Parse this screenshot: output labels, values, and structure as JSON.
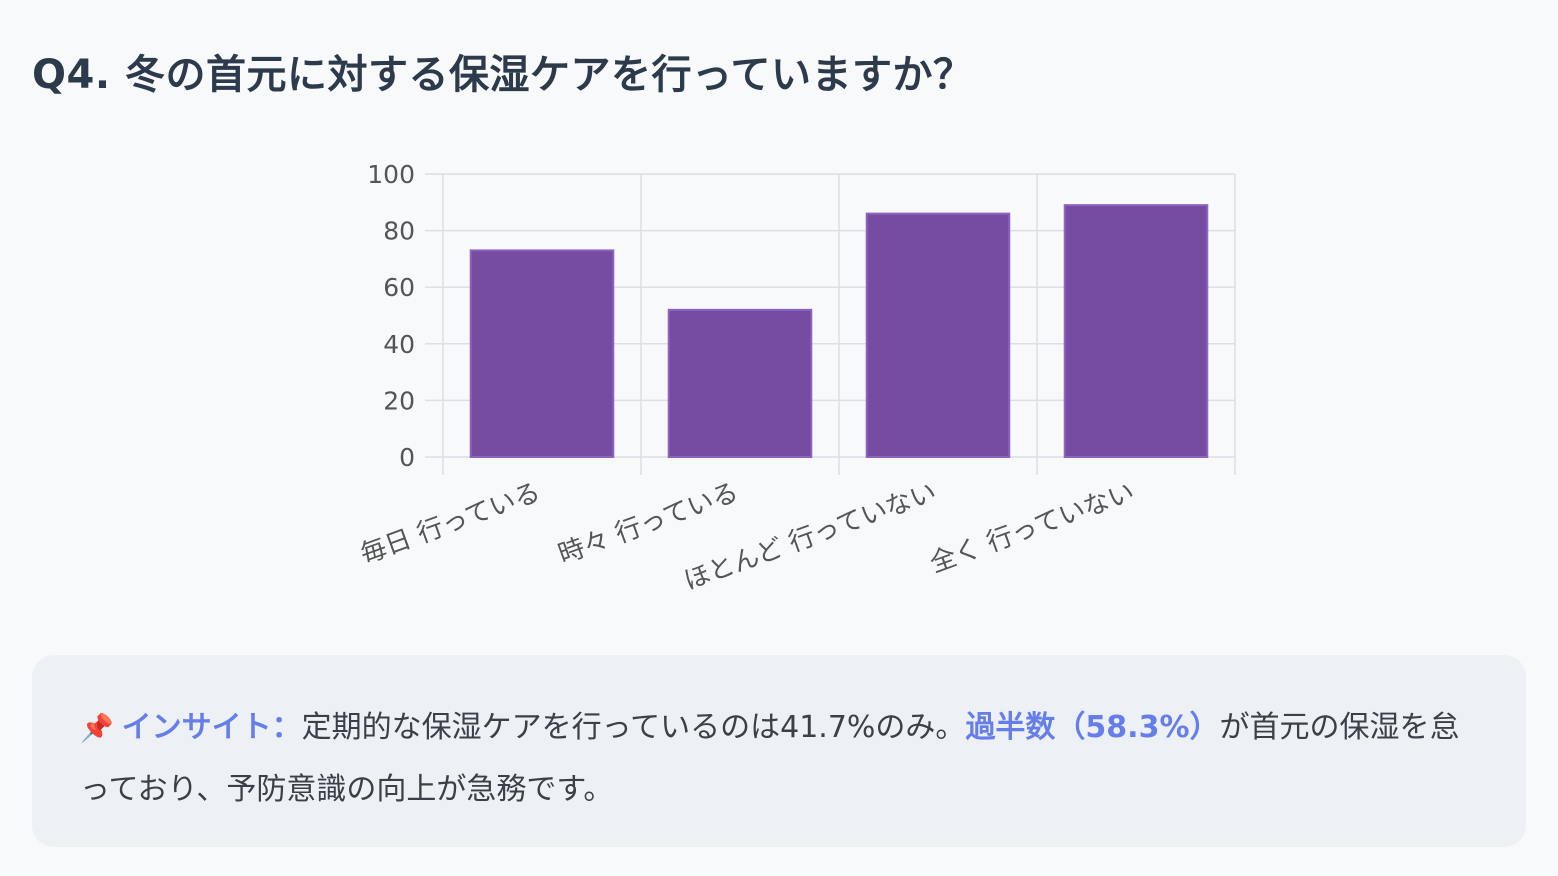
{
  "title": "Q4. 冬の首元に対する保湿ケアを行っていますか？",
  "colors": {
    "bar_fill": "#764ba2",
    "bar_border": "#8e63c0",
    "grid": "#dcdfe4",
    "accent": "#667eea",
    "tick": "#555555"
  },
  "chart_data": {
    "type": "bar",
    "categories": [
      "毎日 行っている",
      "時々 行っている",
      "ほとんど 行っていない",
      "全く 行っていない"
    ],
    "values": [
      73,
      52,
      86,
      89
    ],
    "ylim": [
      0,
      100
    ],
    "yticks": [
      "0",
      "20",
      "40",
      "60",
      "80",
      "100"
    ],
    "grid": true,
    "xlabel": "",
    "ylabel": ""
  },
  "insight": {
    "icon": "pushpin-icon",
    "icon_glyph": "📌",
    "label": "インサイト：",
    "text1": "定期的な保湿ケアを行っているのは41.7%のみ。",
    "highlight": "過半数（58.3%）",
    "text2": "が首元の保湿を怠っており、予防意識の向上が急務です。"
  }
}
